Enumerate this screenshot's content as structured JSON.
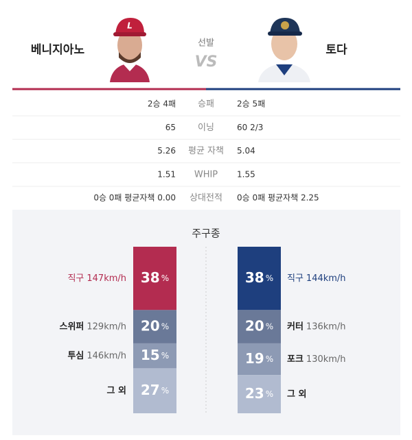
{
  "left": {
    "name": "베니지아노",
    "color": "#b32c50"
  },
  "right": {
    "name": "토다",
    "color": "#1e3f7e"
  },
  "center": {
    "label": "선발",
    "vs": "VS"
  },
  "stats": {
    "rows": [
      {
        "label": "승패",
        "left": "2승 4패",
        "right": "2승 5패"
      },
      {
        "label": "이닝",
        "left": 65,
        "right": "60 2/3"
      },
      {
        "label": "평균 자책",
        "left": 5.26,
        "right": 5.04
      },
      {
        "label": "WHIP",
        "left": 1.51,
        "right": 1.55
      },
      {
        "label": "상대전적",
        "left": "0승 0패 평균자책 0.00",
        "right": "0승 0패 평균자책 2.25"
      }
    ]
  },
  "pitch_mix": {
    "title": "주구종",
    "unit": "%",
    "left": [
      {
        "name": "직구",
        "speed": "147km/h",
        "pct": 38,
        "color": "#b32c50"
      },
      {
        "name": "스위퍼",
        "speed": "129km/h",
        "pct": 20,
        "color": "#6a7998"
      },
      {
        "name": "투심",
        "speed": "146km/h",
        "pct": 15,
        "color": "#8d9ab4"
      },
      {
        "name": "그 외",
        "pct": 27,
        "color": "#b1bbd0"
      }
    ],
    "right": [
      {
        "name": "직구",
        "speed": "144km/h",
        "pct": 38,
        "color": "#1e3f7e"
      },
      {
        "name": "커터",
        "speed": "136km/h",
        "pct": 20,
        "color": "#6a7998"
      },
      {
        "name": "포크",
        "speed": "130km/h",
        "pct": 19,
        "color": "#8d9ab4"
      },
      {
        "name": "그 외",
        "pct": 23,
        "color": "#b1bbd0"
      }
    ]
  }
}
